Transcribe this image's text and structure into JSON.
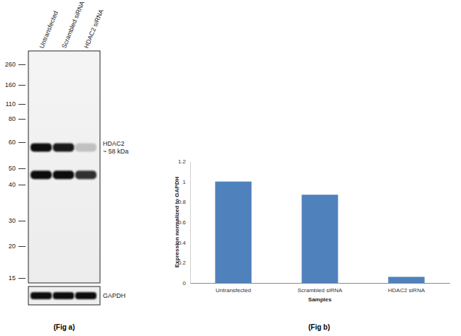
{
  "chart_data": {
    "type": "bar",
    "caption": "(Fig b)",
    "x_label": "Samples",
    "y_label": "Expression  normalized to GAPDH",
    "categories": [
      "Untransfected",
      "Scrambled siRNA",
      "HDAC2 siRNA"
    ],
    "values": [
      1,
      0.87,
      0.06
    ],
    "color": "#4f81bd",
    "ylim": [
      0,
      1.2
    ],
    "yticks": [
      0,
      0.2,
      0.4,
      0.6,
      0.8,
      1,
      1.2
    ],
    "grid": false
  },
  "blot": {
    "caption": "(Fig a)",
    "lanes": [
      "Untransfected",
      "Scrambled siRNA",
      "HDAC2 siRNA"
    ],
    "markers": [
      260,
      160,
      110,
      80,
      60,
      50,
      40,
      30,
      20,
      15
    ],
    "bands": [
      {
        "name": "HDAC2",
        "label": "~ 58 kDa",
        "mw": 58,
        "intensity": [
          1,
          0.95,
          0.2
        ]
      },
      {
        "mw": 46,
        "intensity": [
          1,
          1,
          0.85
        ]
      }
    ],
    "loading_control": {
      "name": "GAPDH",
      "intensity": [
        1,
        1,
        1
      ]
    }
  }
}
